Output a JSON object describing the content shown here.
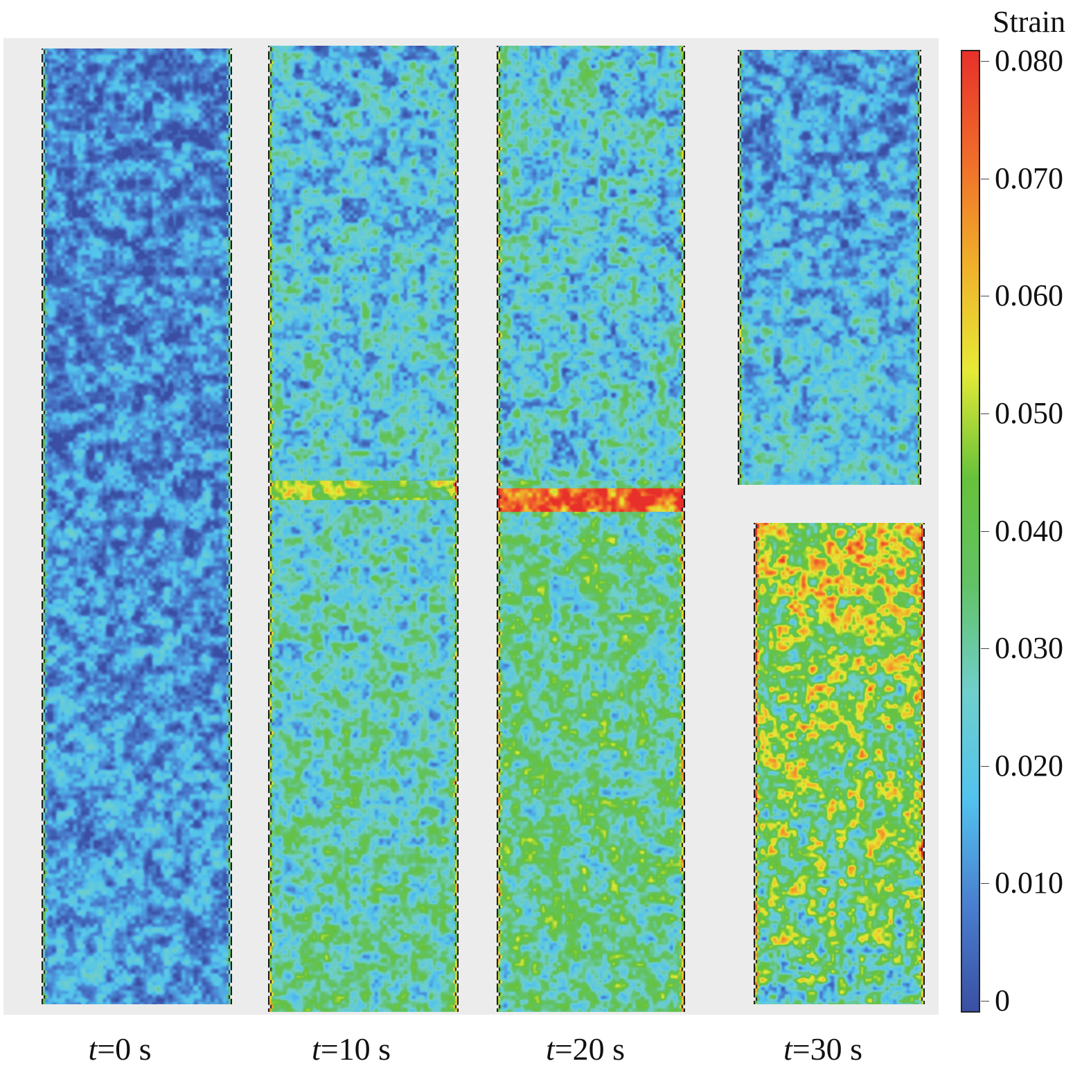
{
  "chart_data": {
    "type": "heatmap",
    "colorbar": {
      "title": "Strain",
      "ticks": [
        "0",
        "0.010",
        "0.020",
        "0.030",
        "0.040",
        "0.050",
        "0.060",
        "0.070",
        "0.080"
      ],
      "range": [
        0,
        0.08
      ],
      "colors": [
        "#3a4fa3",
        "#4a7fcf",
        "#52c3ee",
        "#6fcfcb",
        "#62c266",
        "#66c23a",
        "#e6ea35",
        "#f0b02a",
        "#f06c2a",
        "#e8302a"
      ]
    },
    "panels": [
      {
        "label_var": "t",
        "label_rest": "=0 s",
        "mean_strain": 0.008
      },
      {
        "label_var": "t",
        "label_rest": "=10 s",
        "mean_strain": 0.022
      },
      {
        "label_var": "t",
        "label_rest": "=20 s",
        "mean_strain": 0.03
      },
      {
        "label_var": "t",
        "label_rest": "=30 s",
        "mean_strain": 0.035,
        "fractured": true
      }
    ]
  }
}
